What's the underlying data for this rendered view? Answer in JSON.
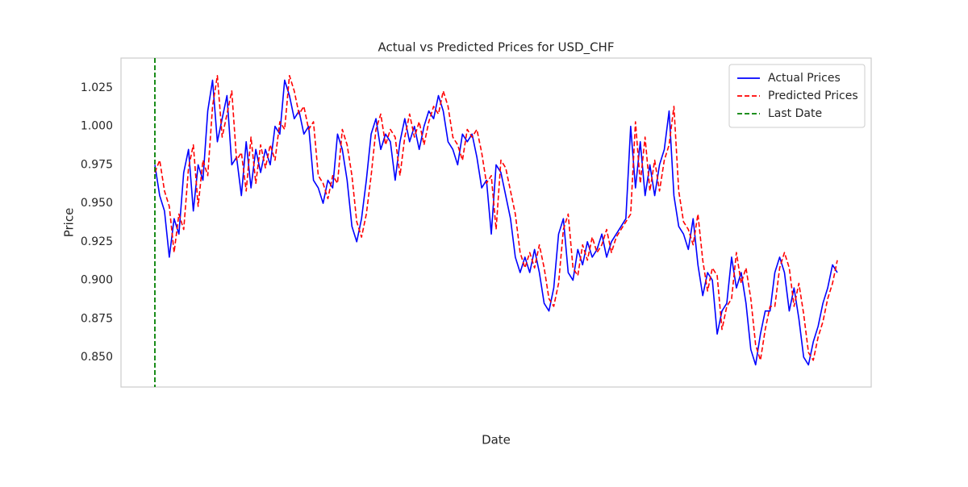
{
  "chart_data": {
    "type": "line",
    "title": "Actual vs Predicted Prices for USD_CHF",
    "x_label": "Date",
    "y_label": "Price",
    "xlim": [
      -7.05,
      149.05
    ],
    "ylim": [
      0.8306,
      1.0444
    ],
    "yticks": [
      {
        "value": 0.85,
        "label": "0.850"
      },
      0.875,
      {
        "value": 0.9,
        "label": "0.900"
      },
      0.925,
      {
        "value": 0.95,
        "label": "0.950"
      },
      0.975,
      {
        "value": 1.0,
        "label": "1.000"
      },
      1.025
    ],
    "grid": false,
    "legend": "upper right",
    "series": [
      {
        "name": "Actual Prices",
        "color": "#0000ff",
        "style": "solid",
        "values": [
          0.975,
          0.955,
          0.945,
          0.915,
          0.94,
          0.93,
          0.97,
          0.985,
          0.945,
          0.975,
          0.965,
          1.01,
          1.03,
          0.99,
          1.005,
          1.02,
          0.975,
          0.98,
          0.955,
          0.99,
          0.96,
          0.985,
          0.97,
          0.985,
          0.975,
          1.0,
          0.995,
          1.03,
          1.02,
          1.005,
          1.01,
          0.995,
          1.0,
          0.965,
          0.96,
          0.95,
          0.965,
          0.96,
          0.995,
          0.985,
          0.965,
          0.935,
          0.925,
          0.94,
          0.965,
          0.995,
          1.005,
          0.985,
          0.995,
          0.99,
          0.965,
          0.99,
          1.005,
          0.99,
          1.0,
          0.985,
          1.0,
          1.01,
          1.005,
          1.02,
          1.01,
          0.99,
          0.985,
          0.975,
          0.995,
          0.99,
          0.995,
          0.98,
          0.96,
          0.965,
          0.93,
          0.975,
          0.97,
          0.955,
          0.94,
          0.915,
          0.905,
          0.915,
          0.905,
          0.92,
          0.905,
          0.885,
          0.88,
          0.895,
          0.93,
          0.94,
          0.905,
          0.9,
          0.92,
          0.91,
          0.925,
          0.915,
          0.92,
          0.93,
          0.915,
          0.925,
          0.93,
          0.935,
          0.94,
          1.0,
          0.96,
          0.99,
          0.955,
          0.975,
          0.955,
          0.975,
          0.985,
          1.01,
          0.955,
          0.935,
          0.93,
          0.92,
          0.94,
          0.91,
          0.89,
          0.905,
          0.9,
          0.865,
          0.88,
          0.885,
          0.915,
          0.895,
          0.905,
          0.885,
          0.855,
          0.845,
          0.865,
          0.88,
          0.88,
          0.905,
          0.915,
          0.905,
          0.88,
          0.895,
          0.875,
          0.85,
          0.845,
          0.86,
          0.87,
          0.885,
          0.895,
          0.91,
          0.905
        ]
      },
      {
        "name": "Predicted Prices",
        "color": "#ff0000",
        "style": "dashed",
        "values": [
          0.97,
          0.978,
          0.958,
          0.948,
          0.918,
          0.943,
          0.933,
          0.973,
          0.988,
          0.948,
          0.978,
          0.968,
          1.013,
          1.033,
          0.993,
          1.008,
          1.023,
          0.978,
          0.983,
          0.958,
          0.993,
          0.963,
          0.988,
          0.973,
          0.988,
          0.978,
          1.003,
          0.998,
          1.033,
          1.023,
          1.008,
          1.013,
          0.998,
          1.003,
          0.968,
          0.963,
          0.953,
          0.968,
          0.963,
          0.998,
          0.988,
          0.968,
          0.938,
          0.928,
          0.943,
          0.968,
          0.998,
          1.008,
          0.988,
          0.998,
          0.993,
          0.968,
          0.993,
          1.008,
          0.993,
          1.003,
          0.988,
          1.003,
          1.013,
          1.008,
          1.023,
          1.013,
          0.993,
          0.988,
          0.978,
          0.998,
          0.993,
          0.998,
          0.983,
          0.963,
          0.968,
          0.933,
          0.978,
          0.973,
          0.958,
          0.943,
          0.918,
          0.908,
          0.918,
          0.908,
          0.923,
          0.908,
          0.888,
          0.883,
          0.898,
          0.933,
          0.943,
          0.908,
          0.903,
          0.923,
          0.913,
          0.928,
          0.918,
          0.923,
          0.933,
          0.918,
          0.928,
          0.933,
          0.938,
          0.943,
          1.003,
          0.963,
          0.993,
          0.958,
          0.978,
          0.958,
          0.978,
          0.988,
          1.013,
          0.958,
          0.938,
          0.933,
          0.923,
          0.943,
          0.913,
          0.893,
          0.908,
          0.903,
          0.868,
          0.883,
          0.888,
          0.918,
          0.898,
          0.908,
          0.888,
          0.858,
          0.848,
          0.868,
          0.883,
          0.883,
          0.908,
          0.918,
          0.908,
          0.883,
          0.898,
          0.878,
          0.853,
          0.848,
          0.863,
          0.873,
          0.888,
          0.898,
          0.913
        ]
      }
    ],
    "vline": {
      "name": "Last Date",
      "color": "#008000",
      "style": "dashed",
      "x": 0
    }
  }
}
